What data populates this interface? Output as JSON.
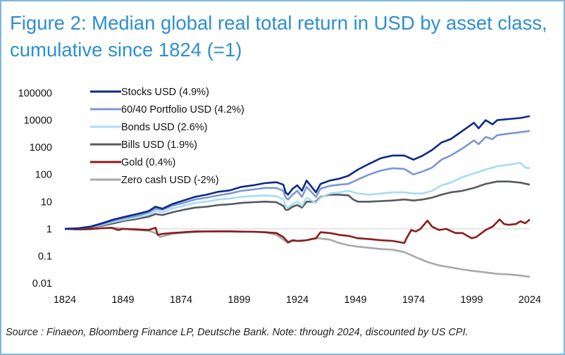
{
  "title": "Figure 2: Median global real total return in USD by asset class, cumulative since 1824 (=1)",
  "source": "Source : Finaeon, Bloomberg Finance LP, Deutsche Bank. Note: through 2024, discounted by US CPI.",
  "chart_data": {
    "type": "line",
    "xlabel": "",
    "ylabel": "",
    "xlim": [
      1824,
      2024
    ],
    "ylim": [
      0.01,
      100000
    ],
    "yscale": "log",
    "grid": false,
    "legend_position": "top-left",
    "x_ticks": [
      "1824",
      "1849",
      "1874",
      "1899",
      "1924",
      "1949",
      "1974",
      "1999",
      "2024"
    ],
    "y_ticks": [
      "100000",
      "10000",
      "1000",
      "100",
      "10",
      "1",
      "0.1",
      "0.01"
    ],
    "reference_line": 1,
    "series": [
      {
        "name": "Stocks USD (4.9%)",
        "color": "#0d2a86",
        "points": [
          [
            1824,
            1
          ],
          [
            1830,
            1.05
          ],
          [
            1835,
            1.2
          ],
          [
            1840,
            1.6
          ],
          [
            1845,
            2.2
          ],
          [
            1850,
            2.8
          ],
          [
            1855,
            3.5
          ],
          [
            1860,
            4.5
          ],
          [
            1863,
            6.5
          ],
          [
            1866,
            5.5
          ],
          [
            1870,
            8
          ],
          [
            1875,
            11
          ],
          [
            1880,
            15
          ],
          [
            1885,
            18
          ],
          [
            1890,
            23
          ],
          [
            1895,
            26
          ],
          [
            1900,
            35
          ],
          [
            1905,
            40
          ],
          [
            1910,
            48
          ],
          [
            1915,
            52
          ],
          [
            1918,
            42
          ],
          [
            1919,
            22
          ],
          [
            1920,
            18
          ],
          [
            1922,
            30
          ],
          [
            1924,
            40
          ],
          [
            1926,
            25
          ],
          [
            1928,
            60
          ],
          [
            1932,
            22
          ],
          [
            1934,
            45
          ],
          [
            1938,
            60
          ],
          [
            1942,
            70
          ],
          [
            1946,
            90
          ],
          [
            1950,
            150
          ],
          [
            1955,
            250
          ],
          [
            1960,
            400
          ],
          [
            1965,
            500
          ],
          [
            1970,
            500
          ],
          [
            1974,
            350
          ],
          [
            1978,
            500
          ],
          [
            1982,
            800
          ],
          [
            1986,
            1500
          ],
          [
            1990,
            2000
          ],
          [
            1995,
            4000
          ],
          [
            2000,
            8000
          ],
          [
            2002,
            5000
          ],
          [
            2005,
            10000
          ],
          [
            2008,
            7000
          ],
          [
            2010,
            10000
          ],
          [
            2015,
            11000
          ],
          [
            2020,
            12000
          ],
          [
            2024,
            14000
          ]
        ]
      },
      {
        "name": "60/40 Portfolio USD (4.2%)",
        "color": "#7b96d8",
        "points": [
          [
            1824,
            1
          ],
          [
            1830,
            1.05
          ],
          [
            1835,
            1.2
          ],
          [
            1840,
            1.5
          ],
          [
            1845,
            2
          ],
          [
            1850,
            2.5
          ],
          [
            1855,
            3
          ],
          [
            1860,
            4
          ],
          [
            1863,
            5.5
          ],
          [
            1866,
            5
          ],
          [
            1870,
            7
          ],
          [
            1875,
            9
          ],
          [
            1880,
            12
          ],
          [
            1885,
            14
          ],
          [
            1890,
            17
          ],
          [
            1895,
            20
          ],
          [
            1900,
            25
          ],
          [
            1905,
            28
          ],
          [
            1910,
            32
          ],
          [
            1915,
            32
          ],
          [
            1918,
            25
          ],
          [
            1919,
            14
          ],
          [
            1920,
            12
          ],
          [
            1922,
            18
          ],
          [
            1924,
            25
          ],
          [
            1926,
            15
          ],
          [
            1928,
            35
          ],
          [
            1932,
            15
          ],
          [
            1934,
            30
          ],
          [
            1938,
            38
          ],
          [
            1942,
            42
          ],
          [
            1946,
            45
          ],
          [
            1950,
            65
          ],
          [
            1955,
            100
          ],
          [
            1960,
            140
          ],
          [
            1965,
            170
          ],
          [
            1970,
            160
          ],
          [
            1974,
            100
          ],
          [
            1978,
            130
          ],
          [
            1982,
            180
          ],
          [
            1986,
            350
          ],
          [
            1990,
            500
          ],
          [
            1995,
            900
          ],
          [
            2000,
            1800
          ],
          [
            2002,
            1300
          ],
          [
            2005,
            2400
          ],
          [
            2008,
            2000
          ],
          [
            2010,
            2800
          ],
          [
            2015,
            3200
          ],
          [
            2020,
            3600
          ],
          [
            2024,
            4000
          ]
        ]
      },
      {
        "name": "Bonds USD (2.6%)",
        "color": "#a8dcf2",
        "points": [
          [
            1824,
            1
          ],
          [
            1830,
            1.05
          ],
          [
            1835,
            1.2
          ],
          [
            1840,
            1.4
          ],
          [
            1845,
            1.8
          ],
          [
            1850,
            2.2
          ],
          [
            1855,
            2.6
          ],
          [
            1860,
            3.3
          ],
          [
            1863,
            4.5
          ],
          [
            1866,
            4
          ],
          [
            1870,
            5.5
          ],
          [
            1875,
            7
          ],
          [
            1880,
            9
          ],
          [
            1885,
            10
          ],
          [
            1890,
            12
          ],
          [
            1895,
            13
          ],
          [
            1900,
            15
          ],
          [
            1905,
            16
          ],
          [
            1910,
            17
          ],
          [
            1915,
            16
          ],
          [
            1918,
            12
          ],
          [
            1919,
            7
          ],
          [
            1920,
            6
          ],
          [
            1922,
            8
          ],
          [
            1924,
            10
          ],
          [
            1926,
            7
          ],
          [
            1928,
            14
          ],
          [
            1932,
            9
          ],
          [
            1934,
            14
          ],
          [
            1938,
            20
          ],
          [
            1942,
            22
          ],
          [
            1946,
            25
          ],
          [
            1950,
            20
          ],
          [
            1955,
            18
          ],
          [
            1960,
            20
          ],
          [
            1965,
            22
          ],
          [
            1970,
            22
          ],
          [
            1974,
            20
          ],
          [
            1978,
            20
          ],
          [
            1982,
            25
          ],
          [
            1986,
            40
          ],
          [
            1990,
            50
          ],
          [
            1995,
            80
          ],
          [
            2000,
            110
          ],
          [
            2005,
            150
          ],
          [
            2010,
            200
          ],
          [
            2015,
            230
          ],
          [
            2020,
            270
          ],
          [
            2022,
            180
          ],
          [
            2024,
            170
          ]
        ]
      },
      {
        "name": "Bills USD (1.9%)",
        "color": "#555a5e",
        "points": [
          [
            1824,
            1
          ],
          [
            1830,
            1.05
          ],
          [
            1835,
            1.15
          ],
          [
            1840,
            1.3
          ],
          [
            1845,
            1.6
          ],
          [
            1850,
            2
          ],
          [
            1855,
            2.3
          ],
          [
            1860,
            2.8
          ],
          [
            1863,
            3.5
          ],
          [
            1866,
            3.2
          ],
          [
            1870,
            4
          ],
          [
            1875,
            5
          ],
          [
            1880,
            6
          ],
          [
            1885,
            6.5
          ],
          [
            1890,
            7.5
          ],
          [
            1895,
            8
          ],
          [
            1900,
            9
          ],
          [
            1905,
            9.5
          ],
          [
            1910,
            10
          ],
          [
            1915,
            9.5
          ],
          [
            1918,
            7
          ],
          [
            1919,
            5
          ],
          [
            1920,
            5
          ],
          [
            1922,
            6.5
          ],
          [
            1924,
            7.5
          ],
          [
            1926,
            6
          ],
          [
            1928,
            10
          ],
          [
            1932,
            10
          ],
          [
            1934,
            15
          ],
          [
            1938,
            18
          ],
          [
            1942,
            18
          ],
          [
            1946,
            17
          ],
          [
            1948,
            12
          ],
          [
            1950,
            10
          ],
          [
            1955,
            10
          ],
          [
            1960,
            10.5
          ],
          [
            1965,
            11
          ],
          [
            1970,
            12
          ],
          [
            1974,
            11
          ],
          [
            1978,
            12
          ],
          [
            1982,
            14
          ],
          [
            1986,
            18
          ],
          [
            1990,
            22
          ],
          [
            1995,
            25
          ],
          [
            2000,
            32
          ],
          [
            2005,
            45
          ],
          [
            2010,
            55
          ],
          [
            2015,
            55
          ],
          [
            2020,
            50
          ],
          [
            2024,
            42
          ]
        ]
      },
      {
        "name": "Gold (0.4%)",
        "color": "#8b1c1c",
        "points": [
          [
            1824,
            1
          ],
          [
            1830,
            0.95
          ],
          [
            1835,
            1
          ],
          [
            1840,
            1.05
          ],
          [
            1844,
            1.1
          ],
          [
            1847,
            0.9
          ],
          [
            1849,
            1
          ],
          [
            1855,
            0.95
          ],
          [
            1860,
            0.9
          ],
          [
            1863,
            1.1
          ],
          [
            1864,
            0.6
          ],
          [
            1866,
            0.65
          ],
          [
            1870,
            0.7
          ],
          [
            1875,
            0.75
          ],
          [
            1880,
            0.8
          ],
          [
            1885,
            0.8
          ],
          [
            1890,
            0.8
          ],
          [
            1895,
            0.8
          ],
          [
            1900,
            0.78
          ],
          [
            1905,
            0.78
          ],
          [
            1910,
            0.75
          ],
          [
            1915,
            0.7
          ],
          [
            1918,
            0.5
          ],
          [
            1920,
            0.32
          ],
          [
            1922,
            0.38
          ],
          [
            1924,
            0.36
          ],
          [
            1928,
            0.38
          ],
          [
            1932,
            0.45
          ],
          [
            1934,
            0.75
          ],
          [
            1938,
            0.7
          ],
          [
            1942,
            0.6
          ],
          [
            1946,
            0.55
          ],
          [
            1950,
            0.45
          ],
          [
            1955,
            0.42
          ],
          [
            1960,
            0.38
          ],
          [
            1965,
            0.36
          ],
          [
            1970,
            0.3
          ],
          [
            1971,
            0.45
          ],
          [
            1973,
            0.9
          ],
          [
            1975,
            0.8
          ],
          [
            1977,
            1
          ],
          [
            1980,
            2
          ],
          [
            1982,
            1.2
          ],
          [
            1985,
            0.9
          ],
          [
            1988,
            1
          ],
          [
            1992,
            0.7
          ],
          [
            1995,
            0.7
          ],
          [
            1999,
            0.45
          ],
          [
            2001,
            0.5
          ],
          [
            2005,
            0.9
          ],
          [
            2008,
            1.2
          ],
          [
            2011,
            2.2
          ],
          [
            2013,
            1.5
          ],
          [
            2015,
            1.4
          ],
          [
            2018,
            1.5
          ],
          [
            2020,
            1.9
          ],
          [
            2022,
            1.6
          ],
          [
            2024,
            2.2
          ]
        ]
      },
      {
        "name": "Zero cash USD (-2%)",
        "color": "#a8a8a8",
        "points": [
          [
            1824,
            1
          ],
          [
            1830,
            0.95
          ],
          [
            1835,
            0.95
          ],
          [
            1840,
            1.05
          ],
          [
            1845,
            1.1
          ],
          [
            1850,
            1
          ],
          [
            1855,
            0.9
          ],
          [
            1860,
            0.85
          ],
          [
            1863,
            0.7
          ],
          [
            1865,
            0.5
          ],
          [
            1870,
            0.65
          ],
          [
            1875,
            0.72
          ],
          [
            1880,
            0.75
          ],
          [
            1885,
            0.8
          ],
          [
            1890,
            0.82
          ],
          [
            1895,
            0.83
          ],
          [
            1900,
            0.8
          ],
          [
            1905,
            0.78
          ],
          [
            1910,
            0.75
          ],
          [
            1915,
            0.6
          ],
          [
            1918,
            0.4
          ],
          [
            1920,
            0.3
          ],
          [
            1922,
            0.36
          ],
          [
            1926,
            0.35
          ],
          [
            1930,
            0.42
          ],
          [
            1933,
            0.45
          ],
          [
            1938,
            0.4
          ],
          [
            1942,
            0.3
          ],
          [
            1946,
            0.25
          ],
          [
            1950,
            0.22
          ],
          [
            1955,
            0.2
          ],
          [
            1960,
            0.18
          ],
          [
            1965,
            0.17
          ],
          [
            1970,
            0.14
          ],
          [
            1975,
            0.09
          ],
          [
            1980,
            0.06
          ],
          [
            1985,
            0.045
          ],
          [
            1990,
            0.038
          ],
          [
            1995,
            0.032
          ],
          [
            2000,
            0.028
          ],
          [
            2005,
            0.025
          ],
          [
            2010,
            0.022
          ],
          [
            2015,
            0.021
          ],
          [
            2020,
            0.019
          ],
          [
            2024,
            0.017
          ]
        ]
      }
    ]
  }
}
